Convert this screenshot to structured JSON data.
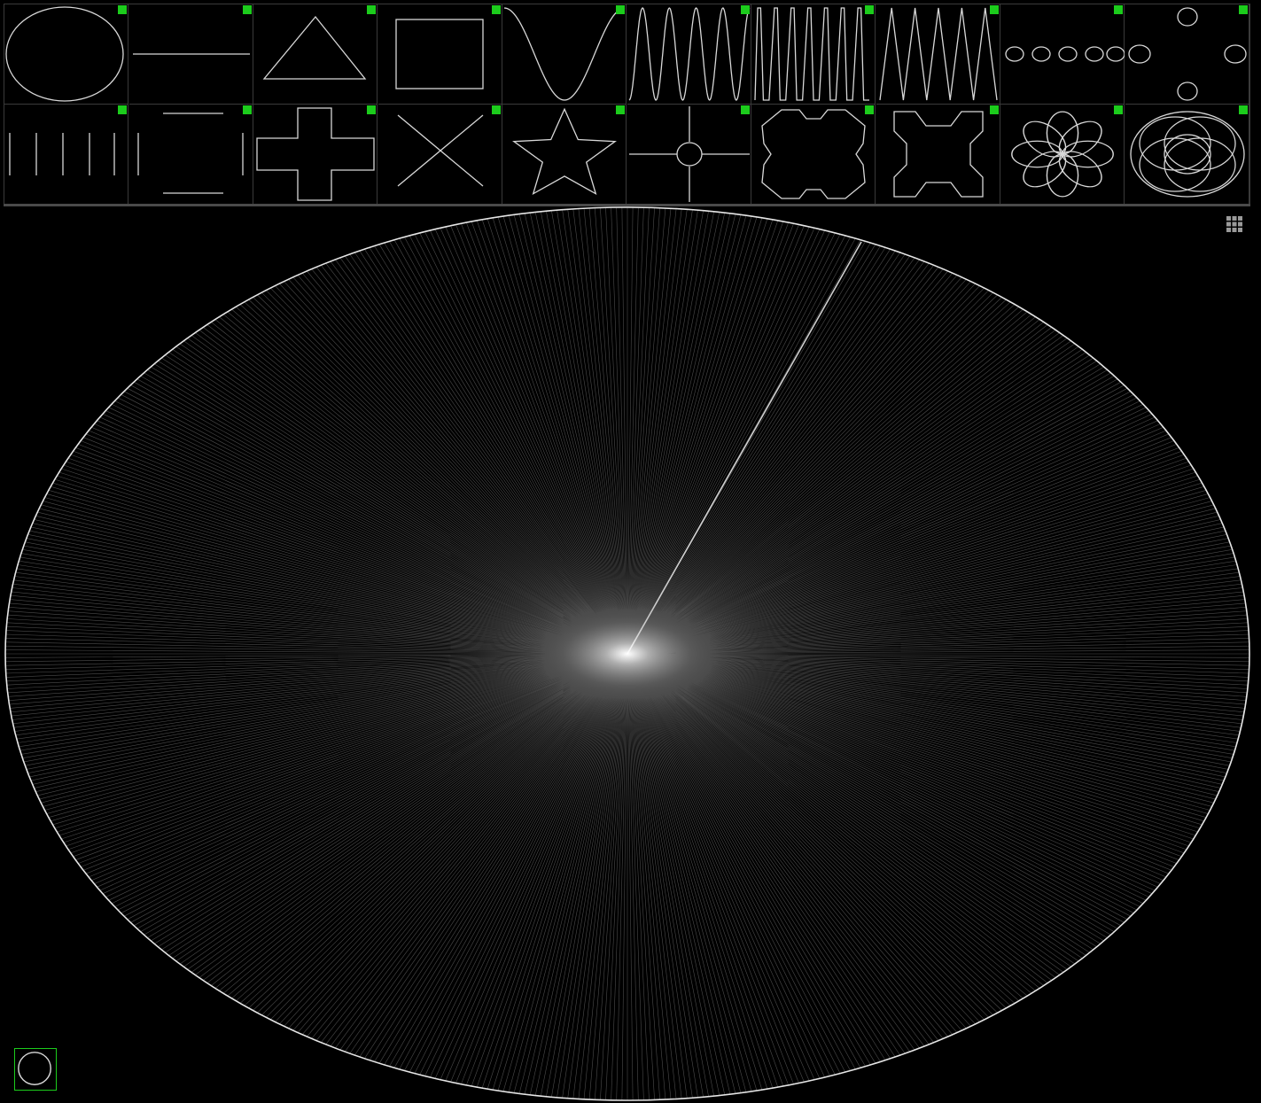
{
  "theme": {
    "background": "#000000",
    "line_color": "#d8d8d8",
    "accent": "#1ccc1c",
    "border": "#3a3a3a"
  },
  "palette": {
    "rows": [
      [
        {
          "icon": "ellipse-icon"
        },
        {
          "icon": "horizontal-line-icon"
        },
        {
          "icon": "triangle-icon"
        },
        {
          "icon": "rectangle-icon"
        },
        {
          "icon": "sine-wave-icon"
        },
        {
          "icon": "high-frequency-wave-icon"
        },
        {
          "icon": "square-wave-icon"
        },
        {
          "icon": "sawtooth-wave-icon"
        },
        {
          "icon": "dotted-ellipses-icon"
        },
        {
          "icon": "four-ellipses-icon"
        }
      ],
      [
        {
          "icon": "vertical-bars-icon"
        },
        {
          "icon": "bracket-square-icon"
        },
        {
          "icon": "plus-shape-icon"
        },
        {
          "icon": "x-cross-icon"
        },
        {
          "icon": "star-icon"
        },
        {
          "icon": "crosshair-circle-icon"
        },
        {
          "icon": "notched-cross-icon"
        },
        {
          "icon": "rounded-cross-icon"
        },
        {
          "icon": "flower-petals-icon"
        },
        {
          "icon": "overlapping-ellipses-icon"
        }
      ]
    ]
  },
  "main": {
    "active_pattern": "ellipse-icon",
    "radial_spoke_count": 720
  },
  "toolbar": {
    "grid_toggle_icon": "grid-icon"
  },
  "preview": {
    "icon": "circle-icon"
  }
}
